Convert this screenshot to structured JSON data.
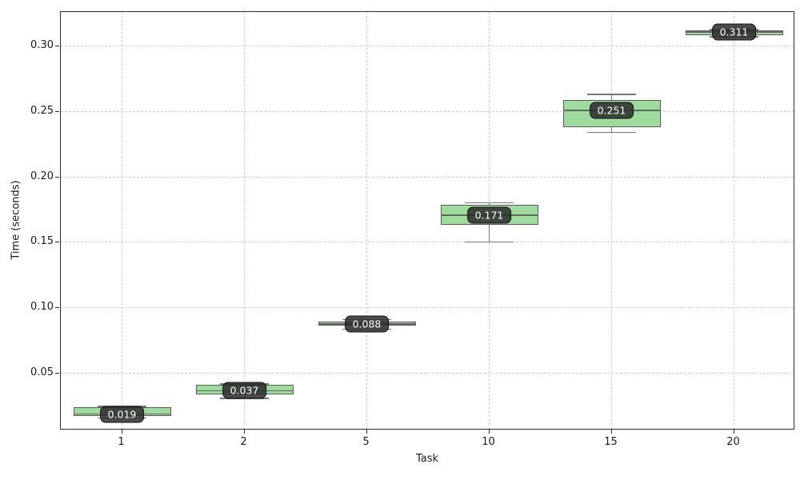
{
  "chart_data": {
    "type": "box",
    "title": "",
    "xlabel": "Task",
    "ylabel": "Time (seconds)",
    "categories": [
      "1",
      "2",
      "5",
      "10",
      "15",
      "20"
    ],
    "ytick_labels": [
      "0.05",
      "0.10",
      "0.15",
      "0.20",
      "0.25",
      "0.30"
    ],
    "ytick_values": [
      0.05,
      0.1,
      0.15,
      0.2,
      0.25,
      0.3
    ],
    "ylim": [
      0.0066,
      0.3263
    ],
    "grid": {
      "style": "dashed",
      "horizontal": true,
      "vertical": true,
      "color": "#cccccc"
    },
    "legend": "none",
    "colors": {
      "box_fill": "#9edc9e",
      "box_edge": "#5a5a5a",
      "whisker": "#777777",
      "median_line": "#666666",
      "label_bg": "#2a2a2a",
      "label_text": "#ffffff",
      "spine": "#2a2a2a",
      "grid": "#cccccc"
    },
    "series": [
      {
        "category": "1",
        "whisker_low": 0.016,
        "q1": 0.0173,
        "median": 0.019,
        "q3": 0.0243,
        "whisker_high": 0.0248,
        "label": "0.019"
      },
      {
        "category": "2",
        "whisker_low": 0.0312,
        "q1": 0.0343,
        "median": 0.037,
        "q3": 0.0414,
        "whisker_high": 0.042,
        "label": "0.037"
      },
      {
        "category": "5",
        "whisker_low": 0.0839,
        "q1": 0.0864,
        "median": 0.088,
        "q3": 0.0896,
        "whisker_high": 0.0914,
        "label": "0.088"
      },
      {
        "category": "10",
        "whisker_low": 0.1505,
        "q1": 0.1639,
        "median": 0.171,
        "q3": 0.1792,
        "whisker_high": 0.1806,
        "label": "0.171"
      },
      {
        "category": "15",
        "whisker_low": 0.2343,
        "q1": 0.238,
        "median": 0.251,
        "q3": 0.2588,
        "whisker_high": 0.2633,
        "label": "0.251"
      },
      {
        "category": "20",
        "whisker_low": 0.3075,
        "q1": 0.3084,
        "median": 0.311,
        "q3": 0.312,
        "whisker_high": 0.313,
        "label": "0.311"
      }
    ]
  }
}
